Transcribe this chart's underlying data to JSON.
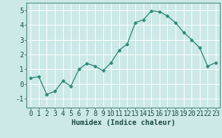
{
  "x": [
    0,
    1,
    2,
    3,
    4,
    5,
    6,
    7,
    8,
    9,
    10,
    11,
    12,
    13,
    14,
    15,
    16,
    17,
    18,
    19,
    20,
    21,
    22,
    23
  ],
  "y": [
    0.4,
    0.5,
    -0.7,
    -0.5,
    0.2,
    -0.15,
    1.0,
    1.4,
    1.2,
    0.9,
    1.45,
    2.3,
    2.7,
    4.15,
    4.35,
    4.95,
    4.9,
    4.6,
    4.15,
    3.5,
    3.0,
    2.45,
    1.2,
    1.45
  ],
  "line_color": "#2d8b7a",
  "marker": "D",
  "marker_size": 2.5,
  "line_width": 1.0,
  "bg_color": "#cce9e7",
  "grid_color": "#ffffff",
  "xlabel": "Humidex (Indice chaleur)",
  "xlim": [
    -0.5,
    23.5
  ],
  "ylim": [
    -1.6,
    5.5
  ],
  "yticks": [
    -1,
    0,
    1,
    2,
    3,
    4,
    5
  ],
  "xticks": [
    0,
    1,
    2,
    3,
    4,
    5,
    6,
    7,
    8,
    9,
    10,
    11,
    12,
    13,
    14,
    15,
    16,
    17,
    18,
    19,
    20,
    21,
    22,
    23
  ],
  "xlabel_fontsize": 7.5,
  "tick_fontsize": 7.0,
  "tick_color": "#1a4a44",
  "spine_color": "#4a8a80"
}
